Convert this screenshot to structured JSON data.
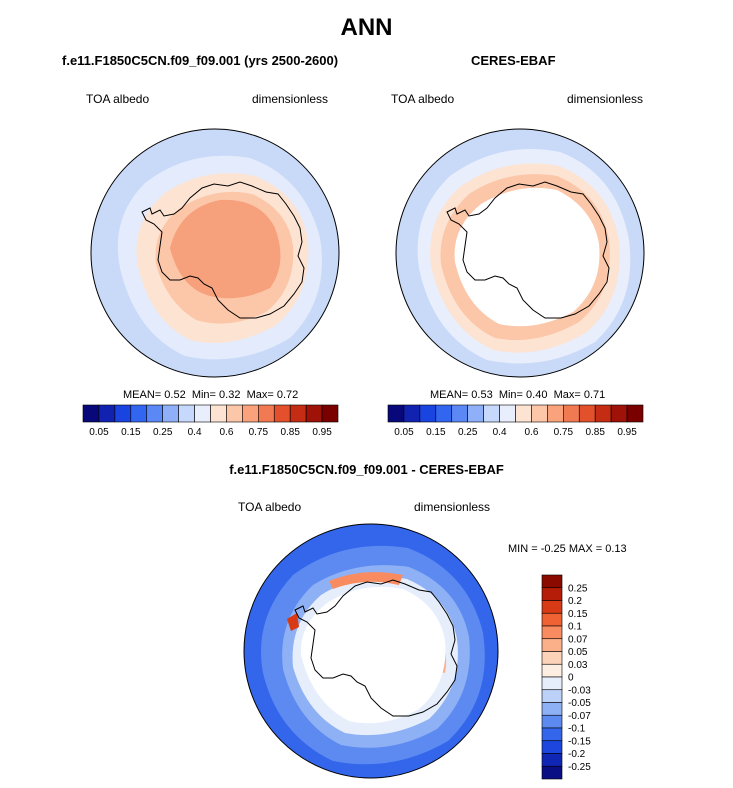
{
  "main_title": "ANN",
  "panels": [
    {
      "title": "f.e11.F1850C5CN.f09_f09.001 (yrs 2500-2600)",
      "left_label": "TOA albedo",
      "right_label": "dimensionless",
      "stats": {
        "mean_label": "MEAN=",
        "mean": "0.52",
        "min_label": "Min=",
        "min": "0.32",
        "max_label": "Max=",
        "max": "0.72"
      }
    },
    {
      "title": "CERES-EBAF",
      "left_label": "TOA albedo",
      "right_label": "dimensionless",
      "stats": {
        "mean_label": "MEAN=",
        "mean": "0.53",
        "min_label": "Min=",
        "min": "0.40",
        "max_label": "Max=",
        "max": "0.71"
      }
    },
    {
      "title": "f.e11.F1850C5CN.f09_f09.001 - CERES-EBAF",
      "left_label": "TOA albedo",
      "right_label": "dimensionless",
      "stats": {
        "min_label": "MIN =",
        "min": "-0.25",
        "max_label": "MAX =",
        "max": "0.13"
      }
    }
  ],
  "colorbar_h": {
    "colors": [
      "#08087a",
      "#1122b0",
      "#1a44e0",
      "#3366f0",
      "#5c88f5",
      "#8fb0f8",
      "#c6d8fb",
      "#e8eefc",
      "#fde3d2",
      "#fcc6a8",
      "#f9a27c",
      "#f27a52",
      "#e2502c",
      "#c42d14",
      "#9e1208",
      "#7a0000"
    ],
    "tick_labels": [
      "0.05",
      "0.15",
      "0.25",
      "0.4",
      "0.6",
      "0.75",
      "0.85",
      "0.95"
    ]
  },
  "colorbar_v": {
    "colors": [
      "#8b0a00",
      "#b51d08",
      "#d93a16",
      "#f06234",
      "#f88c60",
      "#fbb08a",
      "#fcd3b8",
      "#fdeee2",
      "#e6eefc",
      "#bcd1f8",
      "#8eb0f4",
      "#5c8af0",
      "#3466ec",
      "#1c46de",
      "#1026b4",
      "#0a0e84"
    ],
    "tick_labels": [
      "0.25",
      "0.2",
      "0.15",
      "0.1",
      "0.07",
      "0.05",
      "0.03",
      "0",
      "-0.03",
      "-0.05",
      "-0.07",
      "-0.1",
      "-0.15",
      "-0.2",
      "-0.25"
    ]
  },
  "chart_data": [
    {
      "type": "heatmap",
      "title": "f.e11.F1850C5CN.f09_f09.001 (yrs 2500-2600)",
      "variable": "TOA albedo",
      "units": "dimensionless",
      "projection": "south polar stereographic",
      "mean": 0.52,
      "min": 0.32,
      "max": 0.72,
      "contour_levels": [
        0.05,
        0.1,
        0.15,
        0.2,
        0.25,
        0.3,
        0.35,
        0.4,
        0.5,
        0.6,
        0.65,
        0.75,
        0.8,
        0.85,
        0.9,
        0.95
      ],
      "colorbar_tick_labels": [
        "0.05",
        "0.15",
        "0.25",
        "0.4",
        "0.6",
        "0.75",
        "0.85",
        "0.95"
      ]
    },
    {
      "type": "heatmap",
      "title": "CERES-EBAF",
      "variable": "TOA albedo",
      "units": "dimensionless",
      "projection": "south polar stereographic",
      "mean": 0.53,
      "min": 0.4,
      "max": 0.71,
      "contour_levels": [
        0.05,
        0.1,
        0.15,
        0.2,
        0.25,
        0.3,
        0.35,
        0.4,
        0.5,
        0.6,
        0.65,
        0.75,
        0.8,
        0.85,
        0.9,
        0.95
      ],
      "colorbar_tick_labels": [
        "0.05",
        "0.15",
        "0.25",
        "0.4",
        "0.6",
        "0.75",
        "0.85",
        "0.95"
      ]
    },
    {
      "type": "heatmap",
      "title": "f.e11.F1850C5CN.f09_f09.001 - CERES-EBAF",
      "variable": "TOA albedo",
      "units": "dimensionless",
      "projection": "south polar stereographic",
      "min": -0.25,
      "max": 0.13,
      "contour_levels": [
        -0.25,
        -0.2,
        -0.15,
        -0.1,
        -0.07,
        -0.05,
        -0.03,
        0,
        0.03,
        0.05,
        0.07,
        0.1,
        0.15,
        0.2,
        0.25
      ],
      "colorbar_tick_labels": [
        "0.25",
        "0.2",
        "0.15",
        "0.1",
        "0.07",
        "0.05",
        "0.03",
        "0",
        "-0.03",
        "-0.05",
        "-0.07",
        "-0.1",
        "-0.15",
        "-0.2",
        "-0.25"
      ]
    }
  ]
}
